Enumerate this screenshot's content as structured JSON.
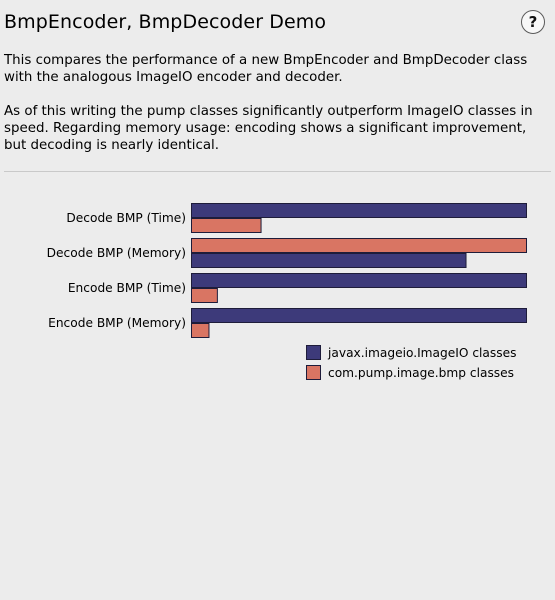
{
  "header": {
    "title": "BmpEncoder, BmpDecoder Demo",
    "help_label": "?"
  },
  "description": {
    "paragraph1": "This compares the performance of a new BmpEncoder and BmpDecoder class with the analogous ImageIO encoder and decoder.",
    "paragraph2": "As of this writing the pump classes significantly outperform ImageIO classes in speed. Regarding memory usage: encoding shows a significant improvement, but decoding is nearly identical."
  },
  "chart_data": {
    "type": "bar",
    "orientation": "horizontal",
    "categories": [
      "Decode BMP (Time)",
      "Decode BMP (Memory)",
      "Encode BMP (Time)",
      "Encode BMP (Memory)"
    ],
    "series": [
      {
        "name": "javax.imageio.ImageIO classes",
        "color": "#3d3a7a",
        "values": [
          1.0,
          0.82,
          1.0,
          1.0
        ]
      },
      {
        "name": "com.pump.image.bmp classes",
        "color": "#d97563",
        "values": [
          0.21,
          1.0,
          0.08,
          0.055
        ]
      }
    ],
    "series_order": [
      [
        "javax.imageio.ImageIO classes",
        "com.pump.image.bmp classes"
      ],
      [
        "com.pump.image.bmp classes",
        "javax.imageio.ImageIO classes"
      ],
      [
        "javax.imageio.ImageIO classes",
        "com.pump.image.bmp classes"
      ],
      [
        "javax.imageio.ImageIO classes",
        "com.pump.image.bmp classes"
      ]
    ],
    "xlim": [
      0,
      1
    ],
    "grid": false,
    "legend": "bottom-right"
  }
}
